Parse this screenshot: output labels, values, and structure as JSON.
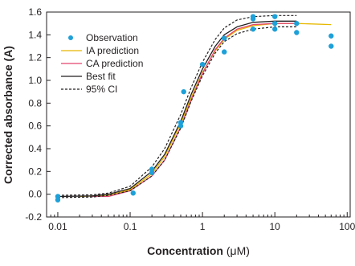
{
  "chart_data": {
    "type": "scatter",
    "xscale": "log",
    "xlim": [
      0.007,
      110
    ],
    "ylim": [
      -0.2,
      1.6
    ],
    "xticks": [
      0.01,
      0.1,
      1,
      10,
      100
    ],
    "xtick_labels": [
      "0.01",
      "0.1",
      "1",
      "10",
      "100"
    ],
    "yticks": [
      -0.2,
      0.0,
      0.2,
      0.4,
      0.6,
      0.8,
      1.0,
      1.2,
      1.4,
      1.6
    ],
    "ytick_labels": [
      "-0.2",
      "0.0",
      "0.2",
      "0.4",
      "0.6",
      "0.8",
      "1.0",
      "1.2",
      "1.4",
      "1.6"
    ],
    "xlabel_main": "Concentration",
    "xlabel_unit": " (μM)",
    "ylabel": "Corrected absorbance (A)",
    "grid": false,
    "legend_position": "top-left",
    "series": [
      {
        "name": "Observation",
        "kind": "points",
        "color": "#1ea0d8",
        "points": [
          [
            0.01,
            -0.02
          ],
          [
            0.01,
            -0.05
          ],
          [
            0.11,
            0.01
          ],
          [
            0.2,
            0.22
          ],
          [
            0.2,
            0.19
          ],
          [
            0.5,
            0.63
          ],
          [
            0.5,
            0.6
          ],
          [
            0.55,
            0.9
          ],
          [
            1.0,
            1.14
          ],
          [
            2.0,
            1.37
          ],
          [
            2.0,
            1.25
          ],
          [
            5.0,
            1.56
          ],
          [
            5.0,
            1.54
          ],
          [
            5.0,
            1.45
          ],
          [
            10.0,
            1.56
          ],
          [
            10.0,
            1.5
          ],
          [
            10.0,
            1.45
          ],
          [
            20.0,
            1.5
          ],
          [
            20.0,
            1.42
          ],
          [
            60.0,
            1.39
          ],
          [
            60.0,
            1.3
          ]
        ]
      },
      {
        "name": "IA prediction",
        "kind": "line",
        "color": "#e6b800",
        "dash": "",
        "points": [
          [
            0.02,
            -0.02
          ],
          [
            0.05,
            -0.01
          ],
          [
            0.1,
            0.04
          ],
          [
            0.2,
            0.18
          ],
          [
            0.3,
            0.33
          ],
          [
            0.5,
            0.62
          ],
          [
            0.7,
            0.85
          ],
          [
            1.0,
            1.07
          ],
          [
            1.5,
            1.26
          ],
          [
            2.0,
            1.36
          ],
          [
            3.0,
            1.44
          ],
          [
            5.0,
            1.48
          ],
          [
            10.0,
            1.5
          ],
          [
            20.0,
            1.5
          ],
          [
            60.0,
            1.49
          ]
        ]
      },
      {
        "name": "CA prediction",
        "kind": "line",
        "color": "#e2456e",
        "dash": "",
        "points": [
          [
            0.03,
            -0.02
          ],
          [
            0.05,
            -0.02
          ],
          [
            0.1,
            0.03
          ],
          [
            0.2,
            0.16
          ],
          [
            0.3,
            0.3
          ],
          [
            0.5,
            0.59
          ],
          [
            0.7,
            0.83
          ],
          [
            1.0,
            1.06
          ],
          [
            1.5,
            1.27
          ],
          [
            2.0,
            1.37
          ],
          [
            3.0,
            1.45
          ],
          [
            5.0,
            1.49
          ],
          [
            10.0,
            1.5
          ],
          [
            20.0,
            1.5
          ]
        ]
      },
      {
        "name": "Best fit",
        "kind": "line",
        "color": "#231f20",
        "dash": "",
        "points": [
          [
            0.01,
            -0.02
          ],
          [
            0.03,
            -0.015
          ],
          [
            0.05,
            0.0
          ],
          [
            0.1,
            0.05
          ],
          [
            0.2,
            0.2
          ],
          [
            0.3,
            0.35
          ],
          [
            0.5,
            0.64
          ],
          [
            0.7,
            0.88
          ],
          [
            1.0,
            1.1
          ],
          [
            1.5,
            1.3
          ],
          [
            2.0,
            1.4
          ],
          [
            3.0,
            1.47
          ],
          [
            5.0,
            1.51
          ],
          [
            10.0,
            1.52
          ],
          [
            20.0,
            1.52
          ]
        ]
      },
      {
        "name": "95% CI",
        "kind": "line",
        "color": "#231f20",
        "dash": "3,2",
        "points": [
          [
            0.01,
            -0.01
          ],
          [
            0.03,
            -0.005
          ],
          [
            0.05,
            0.01
          ],
          [
            0.1,
            0.07
          ],
          [
            0.2,
            0.24
          ],
          [
            0.3,
            0.4
          ],
          [
            0.5,
            0.7
          ],
          [
            0.7,
            0.94
          ],
          [
            1.0,
            1.16
          ],
          [
            1.5,
            1.36
          ],
          [
            2.0,
            1.46
          ],
          [
            3.0,
            1.53
          ],
          [
            5.0,
            1.56
          ],
          [
            10.0,
            1.57
          ],
          [
            20.0,
            1.57
          ]
        ]
      },
      {
        "name": "",
        "kind": "line",
        "color": "#231f20",
        "dash": "3,2",
        "points": [
          [
            0.01,
            -0.03
          ],
          [
            0.03,
            -0.025
          ],
          [
            0.05,
            -0.01
          ],
          [
            0.1,
            0.03
          ],
          [
            0.2,
            0.16
          ],
          [
            0.3,
            0.3
          ],
          [
            0.5,
            0.58
          ],
          [
            0.7,
            0.82
          ],
          [
            1.0,
            1.04
          ],
          [
            1.5,
            1.24
          ],
          [
            2.0,
            1.34
          ],
          [
            3.0,
            1.41
          ],
          [
            5.0,
            1.45
          ],
          [
            10.0,
            1.47
          ],
          [
            20.0,
            1.47
          ]
        ]
      }
    ]
  }
}
